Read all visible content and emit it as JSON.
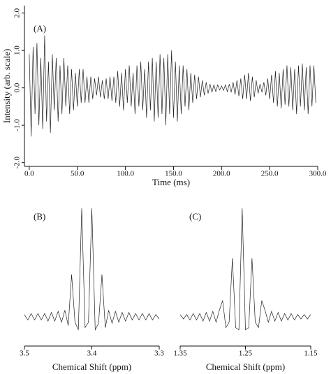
{
  "chart_data": [
    {
      "type": "line",
      "annotation": "(A)",
      "xlabel": "Time (ms)",
      "ylabel": "Intensity (arb. scale)",
      "color": "#222222",
      "xlim": [
        -5,
        300
      ],
      "ylim": [
        -2.1,
        2.2
      ],
      "xticks": [
        {
          "value": 0,
          "label": "0.0"
        },
        {
          "value": 50,
          "label": "50.0"
        },
        {
          "value": 100,
          "label": "100.0"
        },
        {
          "value": 150,
          "label": "150.0"
        },
        {
          "value": 200,
          "label": "200.0"
        },
        {
          "value": 250,
          "label": "250.0"
        },
        {
          "value": 300,
          "label": "300.0"
        }
      ],
      "yticks": [
        {
          "value": -2,
          "label": "-2.0"
        },
        {
          "value": -1,
          "label": "-1.0"
        },
        {
          "value": 0,
          "label": "0.0"
        },
        {
          "value": 1,
          "label": "1.0"
        },
        {
          "value": 2,
          "label": "2.0"
        }
      ],
      "x": [
        0,
        2,
        4,
        6,
        8,
        10,
        12,
        14,
        16,
        18,
        20,
        22,
        24,
        26,
        28,
        30,
        32,
        34,
        36,
        38,
        40,
        42,
        44,
        46,
        48,
        50,
        52,
        54,
        56,
        58,
        60,
        62,
        64,
        66,
        68,
        70,
        72,
        74,
        76,
        78,
        80,
        82,
        84,
        86,
        88,
        90,
        92,
        94,
        96,
        98,
        100,
        102,
        104,
        106,
        108,
        110,
        112,
        114,
        116,
        118,
        120,
        122,
        124,
        126,
        128,
        130,
        132,
        134,
        136,
        138,
        140,
        142,
        144,
        146,
        148,
        150,
        152,
        154,
        156,
        158,
        160,
        162,
        164,
        166,
        168,
        170,
        172,
        174,
        176,
        178,
        180,
        182,
        184,
        186,
        188,
        190,
        192,
        194,
        196,
        198,
        200,
        202,
        204,
        206,
        208,
        210,
        212,
        214,
        216,
        218,
        220,
        222,
        224,
        226,
        228,
        230,
        232,
        234,
        236,
        238,
        240,
        242,
        244,
        246,
        248,
        250,
        252,
        254,
        256,
        258,
        260,
        262,
        264,
        266,
        268,
        270,
        272,
        274,
        276,
        278,
        280,
        282,
        284,
        286,
        288,
        290,
        292,
        294,
        296,
        298
      ],
      "values": [
        0.9,
        -1.3,
        1.1,
        -0.7,
        1.2,
        -1.0,
        0.8,
        -1.1,
        1.4,
        -0.9,
        0.7,
        -1.2,
        0.9,
        -0.6,
        0.8,
        -0.9,
        0.6,
        -0.7,
        0.8,
        -0.5,
        0.6,
        -0.7,
        0.5,
        -0.6,
        0.4,
        -0.5,
        0.5,
        -0.4,
        0.5,
        -0.4,
        0.3,
        -0.4,
        0.3,
        -0.3,
        0.25,
        -0.2,
        0.3,
        -0.25,
        0.2,
        -0.3,
        0.25,
        -0.3,
        0.3,
        -0.35,
        0.3,
        -0.4,
        0.45,
        -0.5,
        0.4,
        -0.6,
        0.5,
        -0.4,
        0.6,
        -0.5,
        0.4,
        -0.7,
        0.6,
        -0.5,
        0.7,
        -0.6,
        0.5,
        -0.8,
        0.7,
        -0.6,
        0.8,
        -0.9,
        0.7,
        -0.8,
        0.9,
        -0.7,
        0.8,
        -1.0,
        0.9,
        -0.7,
        1.0,
        -0.8,
        0.7,
        -0.9,
        0.6,
        -0.7,
        0.6,
        -0.5,
        0.5,
        -0.6,
        0.4,
        -0.4,
        0.35,
        -0.3,
        0.3,
        -0.25,
        0.2,
        -0.2,
        0.15,
        -0.15,
        0.1,
        -0.12,
        0.08,
        -0.1,
        0.08,
        -0.06,
        0.05,
        -0.07,
        0.08,
        -0.1,
        0.1,
        -0.12,
        0.15,
        -0.18,
        0.2,
        -0.22,
        0.25,
        -0.3,
        0.35,
        -0.3,
        0.4,
        -0.35,
        0.3,
        -0.25,
        0.2,
        -0.15,
        0.1,
        -0.12,
        0.15,
        -0.2,
        0.25,
        -0.3,
        0.35,
        -0.4,
        0.45,
        -0.5,
        0.4,
        -0.55,
        0.5,
        -0.45,
        0.6,
        -0.5,
        0.55,
        -0.6,
        0.5,
        -0.7,
        0.6,
        -0.5,
        0.65,
        -0.6,
        0.55,
        -0.7,
        0.6,
        -0.5,
        0.6,
        -0.4
      ]
    },
    {
      "type": "line",
      "annotation": "(B)",
      "xlabel": "Chemical Shift (ppm)",
      "color": "#222222",
      "xlim": [
        3.5,
        3.3
      ],
      "ylim": [
        -0.27,
        1.02
      ],
      "xticks": [
        3.5,
        3.4,
        3.3
      ],
      "x": [
        3.5,
        3.495,
        3.49,
        3.485,
        3.48,
        3.475,
        3.47,
        3.465,
        3.46,
        3.455,
        3.45,
        3.445,
        3.44,
        3.435,
        3.43,
        3.425,
        3.42,
        3.415,
        3.41,
        3.405,
        3.4,
        3.395,
        3.39,
        3.385,
        3.38,
        3.375,
        3.37,
        3.365,
        3.36,
        3.355,
        3.35,
        3.345,
        3.34,
        3.335,
        3.33,
        3.325,
        3.32,
        3.315,
        3.31,
        3.305,
        3.3
      ],
      "values": [
        0.02,
        -0.03,
        0.03,
        -0.03,
        0.03,
        -0.03,
        0.03,
        -0.04,
        0.04,
        -0.04,
        0.05,
        -0.05,
        0.06,
        -0.08,
        0.39,
        -0.05,
        -0.12,
        1.0,
        -0.1,
        -0.05,
        1.0,
        -0.12,
        -0.06,
        0.39,
        -0.1,
        0.06,
        -0.06,
        0.05,
        -0.05,
        0.04,
        -0.04,
        0.04,
        -0.03,
        0.03,
        -0.03,
        0.03,
        -0.03,
        0.03,
        -0.03,
        0.02,
        -0.02
      ]
    },
    {
      "type": "line",
      "annotation": "(C)",
      "xlabel": "Chemical Shift (ppm)",
      "color": "#222222",
      "xlim": [
        1.35,
        1.15
      ],
      "ylim": [
        -0.27,
        1.02
      ],
      "xticks": [
        1.35,
        1.25,
        1.15
      ],
      "x": [
        1.35,
        1.345,
        1.34,
        1.335,
        1.33,
        1.325,
        1.32,
        1.315,
        1.31,
        1.305,
        1.3,
        1.295,
        1.29,
        1.285,
        1.28,
        1.275,
        1.27,
        1.265,
        1.26,
        1.255,
        1.25,
        1.245,
        1.24,
        1.235,
        1.23,
        1.225,
        1.22,
        1.215,
        1.21,
        1.205,
        1.2,
        1.195,
        1.19,
        1.185,
        1.18,
        1.175,
        1.17,
        1.165,
        1.16,
        1.155,
        1.15
      ],
      "values": [
        0.02,
        -0.02,
        0.02,
        -0.03,
        0.03,
        -0.03,
        0.03,
        -0.04,
        0.04,
        -0.04,
        0.05,
        -0.05,
        0.06,
        0.15,
        -0.1,
        -0.05,
        0.54,
        -0.1,
        -0.12,
        1.0,
        -0.12,
        -0.1,
        0.54,
        -0.05,
        -0.1,
        0.15,
        0.06,
        -0.05,
        0.05,
        -0.04,
        0.04,
        -0.04,
        0.03,
        -0.03,
        0.03,
        -0.03,
        0.02,
        -0.02,
        0.02,
        -0.02,
        0.02
      ]
    }
  ]
}
